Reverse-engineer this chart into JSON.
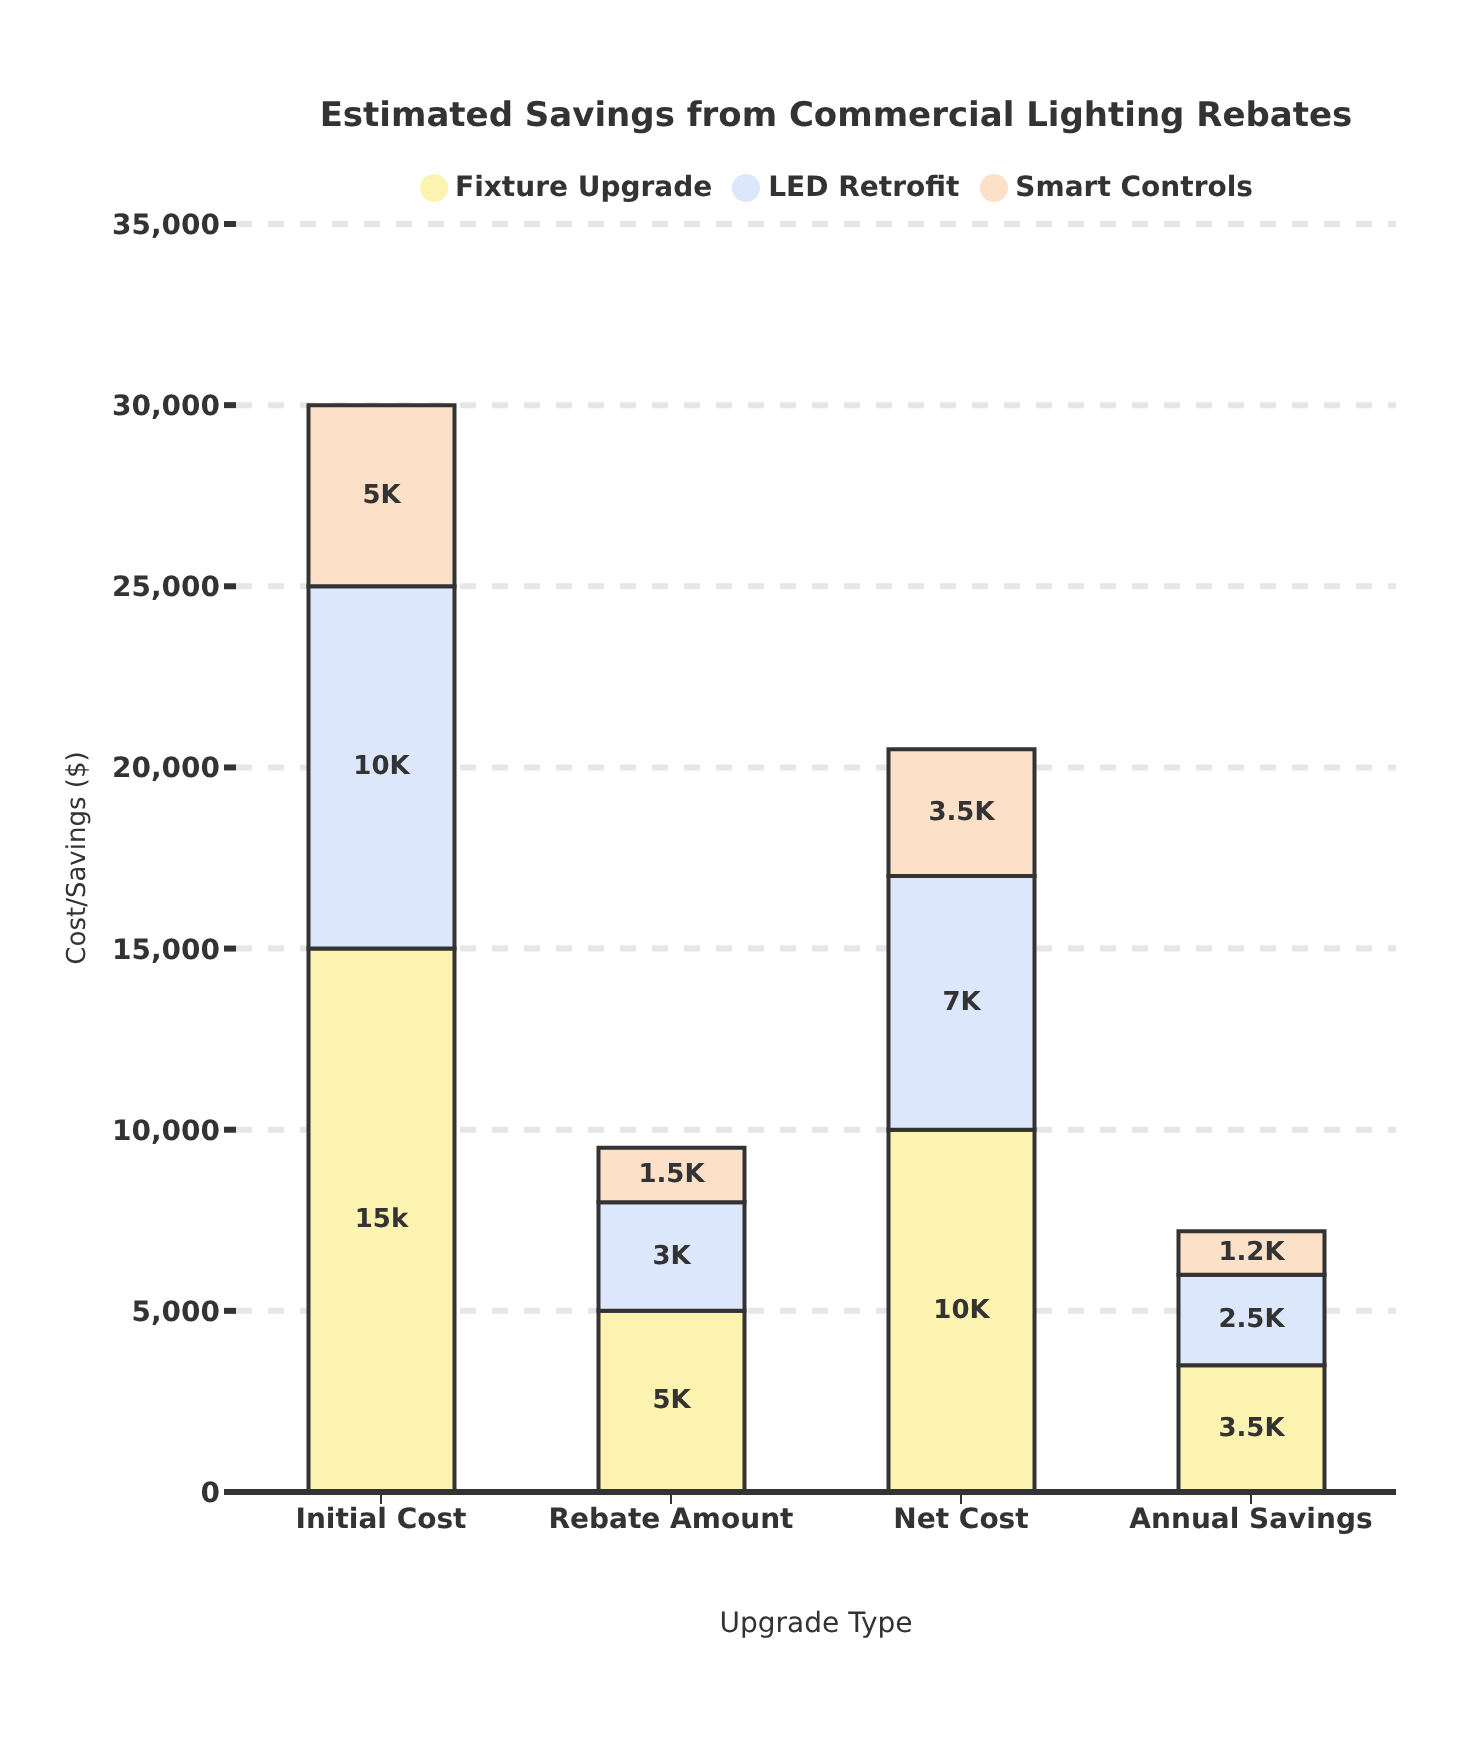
{
  "chart_data": {
    "type": "bar",
    "title": "Estimated Savings from Commercial Lighting Rebates",
    "xlabel": "Upgrade Type",
    "ylabel": "Cost/Savings ($)",
    "categories": [
      "Initial Cost",
      "Rebate Amount",
      "Net Cost",
      "Annual Savings"
    ],
    "stacked": true,
    "series": [
      {
        "name": "Fixture Upgrade",
        "color": "#fdf3b0",
        "values": [
          15000,
          5000,
          10000,
          3500
        ],
        "value_labels": [
          "15k",
          "5K",
          "10K",
          "3.5K"
        ]
      },
      {
        "name": "LED Retrofit",
        "color": "#dce7fb",
        "values": [
          10000,
          3000,
          7000,
          2500
        ],
        "value_labels": [
          "10K",
          "3K",
          "7K",
          "2.5K"
        ]
      },
      {
        "name": "Smart Controls",
        "color": "#fde0c8",
        "values": [
          5000,
          1500,
          3500,
          1200
        ],
        "value_labels": [
          "5K",
          "1.5K",
          "3.5K",
          "1.2K"
        ]
      }
    ],
    "ylim": [
      0,
      35000
    ],
    "yticks": [
      0,
      {
        "value": 5000,
        "label": "5,000"
      },
      {
        "value": 10000,
        "label": "10,000"
      },
      {
        "value": 15000,
        "label": "15,000"
      },
      {
        "value": 20000,
        "label": "20,000"
      },
      {
        "value": 25000,
        "label": "25,000"
      },
      {
        "value": 30000,
        "label": "30,000"
      },
      {
        "value": 35000,
        "label": "35,000"
      }
    ],
    "grid": "y",
    "legend": "top"
  }
}
